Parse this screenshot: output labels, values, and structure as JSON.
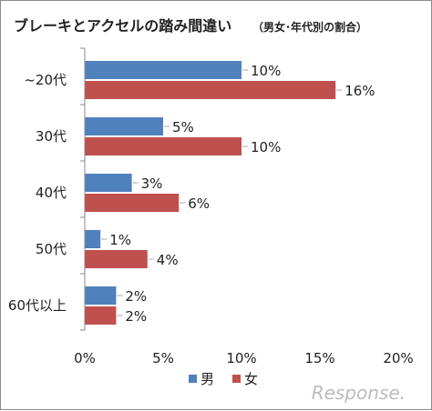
{
  "chart_data": {
    "type": "bar",
    "orientation": "horizontal",
    "title": "ブレーキとアクセルの踏み間違い",
    "subtitle": "（男女･年代別の割合）",
    "categories": [
      "~20代",
      "30代",
      "40代",
      "50代",
      "60代以上"
    ],
    "series": [
      {
        "name": "男",
        "color": "#4f81bd",
        "values": [
          10,
          5,
          3,
          1,
          2
        ],
        "labels": [
          "10%",
          "5%",
          "3%",
          "1%",
          "2%"
        ]
      },
      {
        "name": "女",
        "color": "#c0504d",
        "values": [
          16,
          10,
          6,
          4,
          2
        ],
        "labels": [
          "16%",
          "10%",
          "6%",
          "4%",
          "2%"
        ]
      }
    ],
    "xlim": [
      0,
      20
    ],
    "xticks": [
      0,
      5,
      10,
      15,
      20
    ],
    "xtick_labels": [
      "0%",
      "5%",
      "10%",
      "15%",
      "20%"
    ],
    "xlabel": "",
    "ylabel": "",
    "grid": false,
    "legend_position": "bottom"
  },
  "watermark": "Response."
}
